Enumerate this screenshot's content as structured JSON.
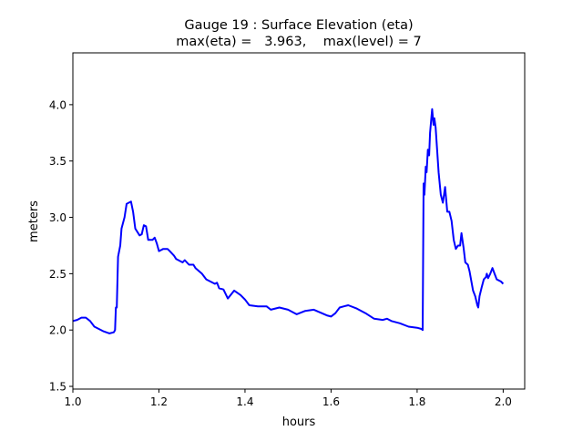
{
  "chart_data": {
    "type": "line",
    "title": "Gauge 19 : Surface Elevation (eta)",
    "subtitle": "max(eta) =   3.963,    max(level) = 7",
    "xlabel": "hours",
    "ylabel": "meters",
    "xlim": [
      1.0,
      2.05
    ],
    "ylim": [
      1.476,
      4.46
    ],
    "xticks": [
      1.0,
      1.2,
      1.4,
      1.6,
      1.8,
      2.0
    ],
    "xtick_labels": [
      "1.0",
      "1.2",
      "1.4",
      "1.6",
      "1.8",
      "2.0"
    ],
    "yticks": [
      1.5,
      2.0,
      2.5,
      3.0,
      3.5,
      4.0
    ],
    "ytick_labels": [
      "1.5",
      "2.0",
      "2.5",
      "3.0",
      "3.5",
      "4.0"
    ],
    "grid": false,
    "series": [
      {
        "name": "eta",
        "color": "#0000ff",
        "x": [
          1.0,
          1.01,
          1.02,
          1.03,
          1.04,
          1.05,
          1.07,
          1.085,
          1.095,
          1.098,
          1.1,
          1.102,
          1.105,
          1.11,
          1.113,
          1.12,
          1.125,
          1.135,
          1.14,
          1.145,
          1.155,
          1.16,
          1.165,
          1.17,
          1.175,
          1.185,
          1.19,
          1.195,
          1.2,
          1.21,
          1.22,
          1.225,
          1.235,
          1.24,
          1.255,
          1.26,
          1.27,
          1.28,
          1.285,
          1.3,
          1.31,
          1.33,
          1.335,
          1.34,
          1.35,
          1.36,
          1.375,
          1.39,
          1.4,
          1.41,
          1.43,
          1.45,
          1.46,
          1.48,
          1.5,
          1.52,
          1.54,
          1.56,
          1.59,
          1.6,
          1.61,
          1.62,
          1.63,
          1.64,
          1.66,
          1.68,
          1.7,
          1.72,
          1.73,
          1.74,
          1.76,
          1.78,
          1.8,
          1.81,
          1.813,
          1.815,
          1.817,
          1.82,
          1.822,
          1.825,
          1.828,
          1.83,
          1.835,
          1.838,
          1.84,
          1.843,
          1.85,
          1.855,
          1.86,
          1.865,
          1.87,
          1.875,
          1.88,
          1.885,
          1.89,
          1.895,
          1.9,
          1.903,
          1.908,
          1.912,
          1.918,
          1.922,
          1.93,
          1.935,
          1.94,
          1.942,
          1.945,
          1.95,
          1.955,
          1.96,
          1.962,
          1.965,
          1.97,
          1.975,
          1.98,
          1.985,
          1.99,
          1.995,
          2.0
        ],
        "y": [
          2.08,
          2.09,
          2.11,
          2.11,
          2.08,
          2.03,
          1.99,
          1.97,
          1.98,
          2.0,
          2.2,
          2.2,
          2.65,
          2.75,
          2.9,
          3.0,
          3.12,
          3.14,
          3.05,
          2.9,
          2.84,
          2.85,
          2.93,
          2.92,
          2.8,
          2.8,
          2.82,
          2.77,
          2.7,
          2.72,
          2.72,
          2.7,
          2.66,
          2.63,
          2.6,
          2.62,
          2.58,
          2.58,
          2.55,
          2.5,
          2.45,
          2.41,
          2.42,
          2.37,
          2.36,
          2.28,
          2.35,
          2.31,
          2.27,
          2.22,
          2.21,
          2.21,
          2.18,
          2.2,
          2.18,
          2.14,
          2.17,
          2.18,
          2.13,
          2.12,
          2.15,
          2.2,
          2.21,
          2.22,
          2.19,
          2.15,
          2.1,
          2.09,
          2.1,
          2.08,
          2.06,
          2.03,
          2.02,
          2.01,
          2.0,
          3.3,
          3.2,
          3.45,
          3.4,
          3.6,
          3.55,
          3.75,
          3.96,
          3.82,
          3.88,
          3.8,
          3.4,
          3.2,
          3.13,
          3.27,
          3.05,
          3.05,
          2.97,
          2.8,
          2.72,
          2.75,
          2.75,
          2.86,
          2.73,
          2.6,
          2.58,
          2.52,
          2.35,
          2.3,
          2.22,
          2.2,
          2.3,
          2.38,
          2.45,
          2.47,
          2.5,
          2.46,
          2.5,
          2.55,
          2.5,
          2.45,
          2.44,
          2.43,
          2.41
        ]
      }
    ]
  }
}
